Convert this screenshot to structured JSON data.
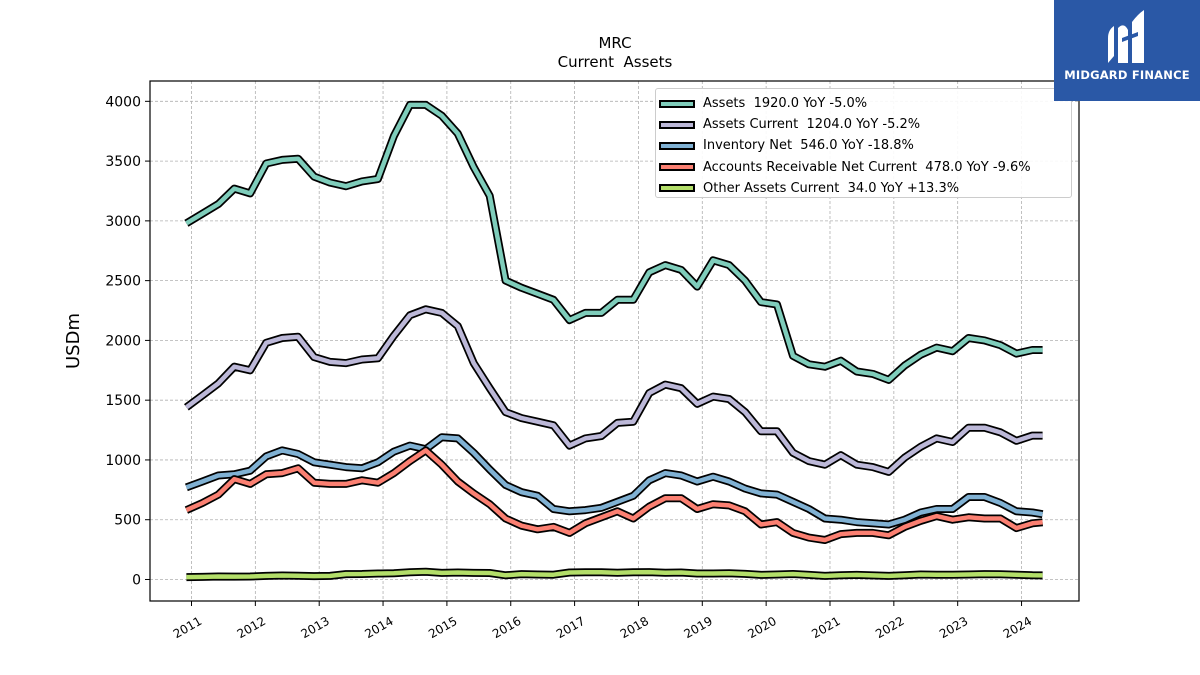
{
  "brand": {
    "name": "MIDGARD FINANCE",
    "bg_color": "#2a58a6"
  },
  "chart_data": {
    "type": "line",
    "title": "MRC",
    "subtitle": "Current  Assets",
    "ylabel": "USDm",
    "xlabel": "",
    "ylim": [
      -180,
      4170
    ],
    "xlim": [
      2010.35,
      2024.9
    ],
    "yticks": [
      0,
      500,
      1000,
      1500,
      2000,
      2500,
      3000,
      3500,
      4000
    ],
    "xticks": [
      "2011",
      "2012",
      "2013",
      "2014",
      "2015",
      "2016",
      "2017",
      "2018",
      "2019",
      "2020",
      "2021",
      "2022",
      "2023",
      "2024"
    ],
    "grid": true,
    "legend_position": "top-right",
    "x": [
      2010.92,
      2011.17,
      2011.42,
      2011.67,
      2011.92,
      2012.17,
      2012.42,
      2012.67,
      2012.92,
      2013.17,
      2013.42,
      2013.67,
      2013.92,
      2014.17,
      2014.42,
      2014.67,
      2014.92,
      2015.17,
      2015.42,
      2015.67,
      2015.92,
      2016.17,
      2016.42,
      2016.67,
      2016.92,
      2017.17,
      2017.42,
      2017.67,
      2017.92,
      2018.17,
      2018.42,
      2018.67,
      2018.92,
      2019.17,
      2019.42,
      2019.67,
      2019.92,
      2020.17,
      2020.42,
      2020.67,
      2020.92,
      2021.17,
      2021.42,
      2021.67,
      2021.92,
      2022.17,
      2022.42,
      2022.67,
      2022.92,
      2023.17,
      2023.42,
      2023.67,
      2023.92,
      2024.17,
      2024.33
    ],
    "series": [
      {
        "name": "Assets",
        "legend": "Assets  1920.0 YoY -5.0%",
        "color": "#7fcdbb",
        "values": [
          2980,
          3060,
          3140,
          3270,
          3230,
          3480,
          3510,
          3520,
          3370,
          3320,
          3290,
          3330,
          3350,
          3710,
          3970,
          3970,
          3880,
          3730,
          3450,
          3210,
          2500,
          2440,
          2390,
          2340,
          2170,
          2230,
          2230,
          2340,
          2340,
          2570,
          2630,
          2590,
          2450,
          2670,
          2630,
          2500,
          2320,
          2300,
          1870,
          1800,
          1780,
          1830,
          1740,
          1720,
          1670,
          1790,
          1880,
          1940,
          1910,
          2020,
          2000,
          1960,
          1890,
          1920,
          1920
        ]
      },
      {
        "name": "Assets Current",
        "legend": "Assets Current  1204.0 YoY -5.2%",
        "color": "#bcb8d8",
        "values": [
          1440,
          1540,
          1640,
          1780,
          1750,
          1980,
          2020,
          2030,
          1860,
          1820,
          1810,
          1840,
          1850,
          2040,
          2210,
          2260,
          2230,
          2120,
          1810,
          1600,
          1400,
          1350,
          1320,
          1290,
          1120,
          1180,
          1200,
          1310,
          1320,
          1560,
          1630,
          1600,
          1470,
          1530,
          1510,
          1400,
          1240,
          1240,
          1060,
          990,
          960,
          1040,
          960,
          940,
          900,
          1020,
          1110,
          1180,
          1150,
          1270,
          1270,
          1230,
          1160,
          1204,
          1204
        ]
      },
      {
        "name": "Inventory Net",
        "legend": "Inventory Net  546.0 YoY -18.8%",
        "color": "#80b1d3",
        "values": [
          770,
          820,
          870,
          880,
          910,
          1030,
          1080,
          1050,
          980,
          960,
          940,
          930,
          980,
          1070,
          1120,
          1090,
          1190,
          1180,
          1060,
          920,
          790,
          730,
          700,
          590,
          570,
          580,
          600,
          650,
          700,
          830,
          890,
          870,
          820,
          860,
          820,
          760,
          720,
          710,
          650,
          590,
          510,
          500,
          480,
          470,
          460,
          500,
          560,
          590,
          590,
          690,
          690,
          640,
          570,
          560,
          546
        ]
      },
      {
        "name": "Accounts Receivable Net Current",
        "legend": "Accounts Receivable Net Current  478.0 YoY -9.6%",
        "color": "#fb8072",
        "values": [
          580,
          640,
          710,
          840,
          800,
          880,
          890,
          930,
          810,
          800,
          800,
          830,
          810,
          890,
          990,
          1080,
          960,
          820,
          720,
          630,
          510,
          450,
          420,
          440,
          390,
          470,
          520,
          570,
          510,
          610,
          680,
          680,
          590,
          630,
          620,
          570,
          460,
          480,
          390,
          350,
          330,
          380,
          390,
          390,
          370,
          440,
          490,
          530,
          500,
          520,
          510,
          510,
          430,
          470,
          478
        ]
      },
      {
        "name": "Other Assets Current",
        "legend": "Other Assets Current  34.0 YoY +13.3%",
        "color": "#b3de69",
        "values": [
          20,
          22,
          25,
          24,
          25,
          30,
          33,
          32,
          28,
          30,
          45,
          46,
          50,
          52,
          60,
          64,
          55,
          58,
          55,
          54,
          35,
          45,
          42,
          40,
          58,
          60,
          60,
          56,
          60,
          62,
          56,
          58,
          50,
          50,
          52,
          47,
          38,
          42,
          46,
          38,
          30,
          35,
          38,
          34,
          30,
          36,
          42,
          40,
          40,
          42,
          45,
          43,
          40,
          35,
          34
        ]
      }
    ]
  }
}
